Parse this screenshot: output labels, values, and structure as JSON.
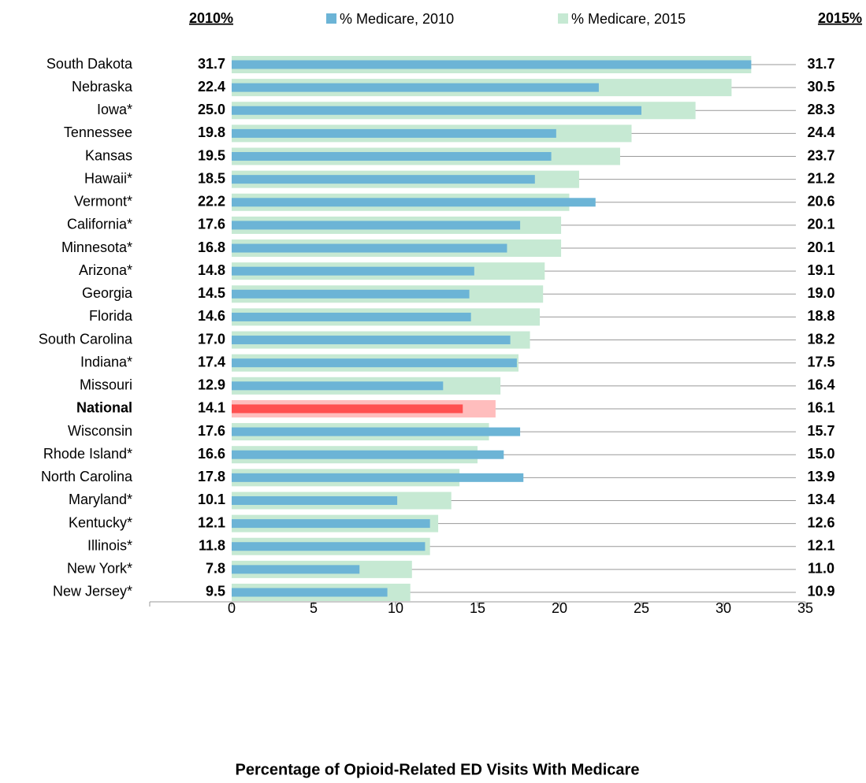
{
  "chart_data": {
    "type": "overlay-bar",
    "column_headers": [
      "2010%",
      "2015%"
    ],
    "x_label": "Percentage of Opioid-Related ED Visits With Medicare",
    "categories": [
      "South Dakota",
      "Nebraska",
      "Iowa*",
      "Tennessee",
      "Kansas",
      "Hawaii*",
      "Vermont*",
      "California*",
      "Minnesota*",
      "Arizona*",
      "Georgia",
      "Florida",
      "South Carolina",
      "Indiana*",
      "Missouri",
      "National",
      "Wisconsin",
      "Rhode Island*",
      "North Carolina",
      "Maryland*",
      "Kentucky*",
      "Illinois*",
      "New York*",
      "New Jersey*"
    ],
    "highlight": "National",
    "highlight_label_color": "#ff0000",
    "series": [
      {
        "name": "% Medicare,  2015",
        "color": "#c6e9d3",
        "highlight_color": "#ffbdbd",
        "values": [
          31.7,
          30.5,
          28.3,
          24.4,
          23.7,
          21.2,
          20.6,
          20.1,
          20.1,
          19.1,
          19,
          18.8,
          18.2,
          17.5,
          16.4,
          16.1,
          15.7,
          15,
          13.9,
          13.4,
          12.6,
          12.1,
          11,
          10.9
        ],
        "value_labels": [
          "31.7",
          "30.5",
          "28.3",
          "24.4",
          "23.7",
          "21.2",
          "20.6",
          "20.1",
          "20.1",
          "19.1",
          "19.0",
          "18.8",
          "18.2",
          "17.5",
          "16.4",
          "16.1",
          "15.7",
          "15.0",
          "13.9",
          "13.4",
          "12.6",
          "12.1",
          "11.0",
          "10.9"
        ]
      },
      {
        "name": "% Medicare,  2010",
        "color": "#6cb4d6",
        "highlight_color": "#ff5050",
        "values": [
          31.7,
          22.4,
          25,
          19.8,
          19.5,
          18.5,
          22.2,
          17.6,
          16.8,
          14.8,
          14.5,
          14.6,
          17,
          17.4,
          12.9,
          14.1,
          17.6,
          16.6,
          17.8,
          10.1,
          12.1,
          11.8,
          7.8,
          9.5
        ],
        "value_labels": [
          "31.7",
          "22.4",
          "25.0",
          "19.8",
          "19.5",
          "18.5",
          "22.2",
          "17.6",
          "16.8",
          "14.8",
          "14.5",
          "14.6",
          "17.0",
          "17.4",
          "12.9",
          "14.1",
          "17.6",
          "16.6",
          "17.8",
          "10.1",
          "12.1",
          "11.8",
          "7.8",
          "9.5"
        ]
      }
    ],
    "xlim": [
      -5,
      35
    ],
    "xticks": [
      0,
      5,
      10,
      15,
      20,
      25,
      30,
      35
    ]
  }
}
